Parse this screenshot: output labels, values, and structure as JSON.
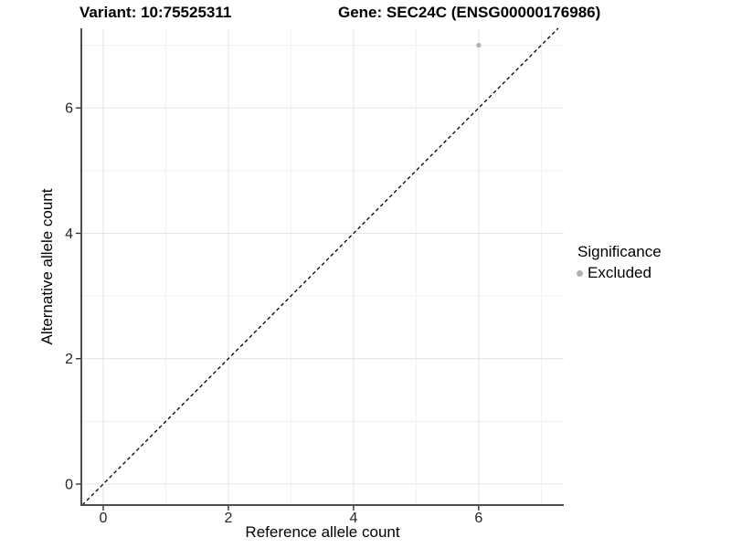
{
  "chart_data": {
    "type": "scatter",
    "title_left": "Variant: 10:75525311",
    "title_right": "Gene: SEC24C (ENSG00000176986)",
    "xlabel": "Reference allele count",
    "ylabel": "Alternative allele count",
    "xlim": [
      -0.35,
      7.36
    ],
    "ylim": [
      -0.335,
      7.27
    ],
    "xticks": [
      0,
      2,
      4,
      6
    ],
    "yticks": [
      0,
      2,
      4,
      6
    ],
    "minor_xticks": [
      1,
      3,
      5,
      7
    ],
    "minor_yticks": [
      1,
      3,
      5,
      7
    ],
    "points": [
      {
        "x": 6,
        "y": 7,
        "significance": "Excluded"
      }
    ],
    "point_color": "#b0b0b0",
    "point_radius": 2.6,
    "reference_line": {
      "slope": 1,
      "intercept": 0,
      "style": "dashed",
      "color": "#000000"
    },
    "grid": {
      "on": true,
      "major_color": "#e4e4e4",
      "minor_color": "#f0f0f0"
    },
    "axis": {
      "line_color": "#4d4d4d",
      "tick_color": "#333333",
      "tick_length": 5,
      "label_color": "#262626"
    },
    "legend": {
      "title": "Significance",
      "position": "right",
      "entries": [
        {
          "label": "Excluded",
          "color": "#b0b0b0"
        }
      ]
    }
  }
}
